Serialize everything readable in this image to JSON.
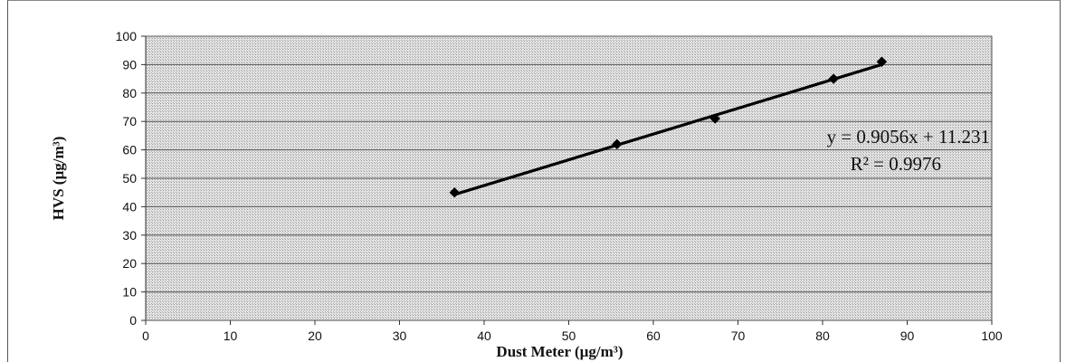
{
  "chart_data": {
    "type": "scatter",
    "xlabel": "Dust Meter  (µg/m³)",
    "ylabel": "HVS (µg/m³)",
    "xlim": [
      0,
      100
    ],
    "ylim": [
      0,
      100
    ],
    "x_ticks": [
      "0",
      "10",
      "20",
      "30",
      "40",
      "50",
      "60",
      "70",
      "80",
      "90",
      "100"
    ],
    "y_ticks": [
      "0",
      "10",
      "20",
      "30",
      "40",
      "50",
      "60",
      "70",
      "80",
      "90",
      "100"
    ],
    "grid": "horizontal",
    "series": [
      {
        "x": [
          36.5,
          55.7,
          67.3,
          81.3,
          87.0
        ],
        "y": [
          45,
          62,
          71,
          85,
          91
        ],
        "marker": "diamond",
        "color": "#000000"
      }
    ],
    "trendline": {
      "slope": 0.9056,
      "intercept": 11.231,
      "x_range": [
        36.5,
        87.0
      ],
      "equation": "y = 0.9056x + 11.231",
      "r_squared": "R² = 0.9976"
    },
    "plot_background": "#d9d9d9"
  }
}
